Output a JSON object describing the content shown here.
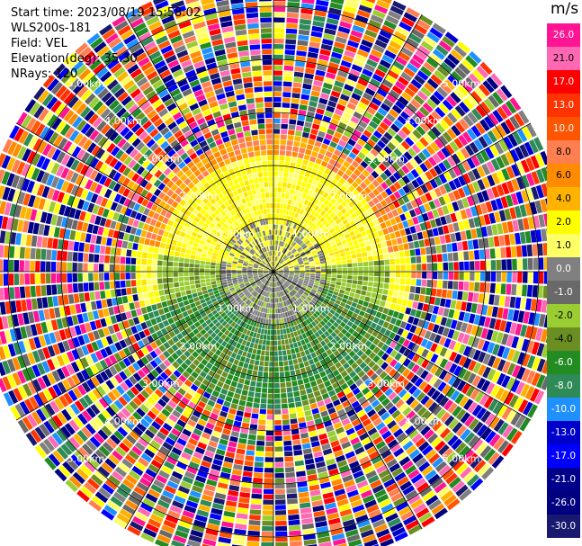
{
  "info": {
    "start_time": "Start time: 2023/08/19 15:58:02",
    "instrument": "WLS200s-181",
    "field": "Field: VEL",
    "elevation": "Elevation(deg): 35.30",
    "nrays": "NRays: 120"
  },
  "chart_data": {
    "type": "heatmap",
    "projection": "ppi-polar",
    "field": "VEL",
    "units": "m/s",
    "n_rays": 120,
    "elevation_deg": 35.3,
    "range_rings_km": [
      1.0,
      2.0,
      3.0,
      4.0,
      5.0
    ],
    "ring_labels": [
      "1.00km",
      "2.00km",
      "3.00km",
      "4.00km",
      "5.00km"
    ],
    "max_range_km": 5.6,
    "colorbar": {
      "unit": "m/s",
      "ticks": [
        "26.0",
        "21.0",
        "17.0",
        "13.0",
        "10.0",
        "8.0",
        "6.0",
        "4.0",
        "2.0",
        "1.0",
        "0.0",
        "-1.0",
        "-2.0",
        "-4.0",
        "-6.0",
        "-8.0",
        "-10.0",
        "-13.0",
        "-17.0",
        "-21.0",
        "-26.0",
        "-30.0"
      ],
      "colors": [
        "#ff1493",
        "#ff69b4",
        "#ff0000",
        "#ff3300",
        "#ff5500",
        "#ff7f50",
        "#ff8c00",
        "#ffb300",
        "#ffff00",
        "#ffff66",
        "#808080",
        "#696969",
        "#9acd32",
        "#6b8e23",
        "#228b22",
        "#2e8b57",
        "#1e90ff",
        "#0000cd",
        "#0000ff",
        "#00008b",
        "#000080",
        "#191970"
      ]
    },
    "regions": [
      {
        "range_km": [
          0.0,
          1.0
        ],
        "pattern": "mixed gray / yellow-green near-zero velocities"
      },
      {
        "range_km": [
          1.0,
          2.2
        ],
        "north_half": "yellow (1 to 4 m/s)",
        "south_half": "yellow-green to green (-1 to -6 m/s)"
      },
      {
        "range_km": [
          2.2,
          2.6
        ],
        "north_half": "orange / salmon (6 to 8 m/s)",
        "south_half": "green (-4 to -6 m/s)"
      },
      {
        "range_km": [
          2.6,
          5.6
        ],
        "pattern": "noisy, all colors (unfiltered)"
      }
    ]
  }
}
